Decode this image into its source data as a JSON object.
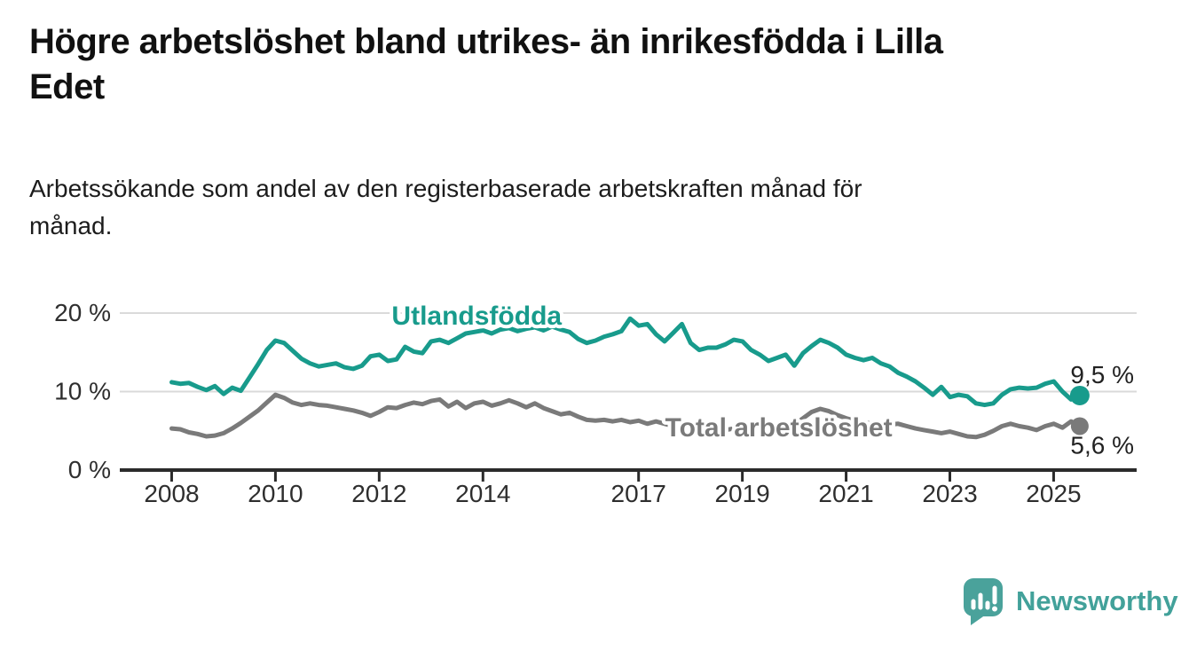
{
  "header": {
    "title": "Högre arbetslöshet bland utrikes- än inrikesfödda i Lilla\nEdet",
    "subtitle": "Arbetssökande som andel av den registerbaserade arbetskraften månad för\nmånad."
  },
  "chart_data": {
    "type": "line",
    "x_start": 2008.0,
    "x_step": 0.1667,
    "xlim": [
      2007.0,
      2026.6
    ],
    "ylim": [
      0,
      21.7
    ],
    "grid_values": [
      10,
      20
    ],
    "y_ticks": [
      {
        "value": 0,
        "label": "0 %"
      },
      {
        "value": 10,
        "label": "10 %"
      },
      {
        "value": 20,
        "label": "20 %"
      }
    ],
    "x_ticks": [
      {
        "value": 2008,
        "label": "2008"
      },
      {
        "value": 2010,
        "label": "2010"
      },
      {
        "value": 2012,
        "label": "2012"
      },
      {
        "value": 2014,
        "label": "2014"
      },
      {
        "value": 2017,
        "label": "2017"
      },
      {
        "value": 2019,
        "label": "2019"
      },
      {
        "value": 2021,
        "label": "2021"
      },
      {
        "value": 2023,
        "label": "2023"
      },
      {
        "value": 2025,
        "label": "2025"
      }
    ],
    "series": [
      {
        "name": "Utlandsfödda",
        "color": "#189b8c",
        "end_label": "9,5 %",
        "label_pos": {
          "x": 2013.88,
          "y": 19.67
        },
        "values": [
          11.2,
          11.0,
          11.1,
          10.6,
          10.2,
          10.7,
          9.7,
          10.5,
          10.1,
          11.8,
          13.5,
          15.3,
          16.5,
          16.2,
          15.2,
          14.2,
          13.6,
          13.2,
          13.4,
          13.6,
          13.1,
          12.9,
          13.3,
          14.5,
          14.7,
          13.9,
          14.1,
          15.7,
          15.1,
          14.9,
          16.4,
          16.6,
          16.2,
          16.8,
          17.4,
          17.6,
          17.8,
          17.4,
          17.9,
          18.1,
          17.7,
          18.0,
          18.2,
          17.8,
          18.3,
          17.9,
          17.6,
          16.7,
          16.2,
          16.5,
          17.0,
          17.3,
          17.7,
          19.3,
          18.4,
          18.6,
          17.3,
          16.4,
          17.5,
          18.6,
          16.2,
          15.3,
          15.6,
          15.6,
          16.0,
          16.6,
          16.4,
          15.3,
          14.7,
          13.9,
          14.3,
          14.7,
          13.3,
          14.9,
          15.8,
          16.6,
          16.2,
          15.6,
          14.7,
          14.3,
          14.0,
          14.3,
          13.6,
          13.2,
          12.4,
          11.9,
          11.3,
          10.5,
          9.6,
          10.6,
          9.3,
          9.6,
          9.4,
          8.5,
          8.3,
          8.5,
          9.6,
          10.3,
          10.5,
          10.4,
          10.5,
          11.0,
          11.3,
          10.0,
          9.0,
          9.5
        ]
      },
      {
        "name": "Total arbetslöshet",
        "color": "#7a7a7a",
        "end_label": "5,6 %",
        "label_pos": {
          "x": 2019.7,
          "y": 5.42
        },
        "values": [
          5.3,
          5.2,
          4.8,
          4.6,
          4.3,
          4.4,
          4.7,
          5.3,
          6.0,
          6.8,
          7.6,
          8.6,
          9.6,
          9.2,
          8.6,
          8.3,
          8.5,
          8.3,
          8.2,
          8.0,
          7.8,
          7.6,
          7.3,
          6.9,
          7.4,
          8.0,
          7.9,
          8.3,
          8.6,
          8.4,
          8.8,
          9.0,
          8.1,
          8.7,
          7.9,
          8.5,
          8.7,
          8.2,
          8.5,
          8.9,
          8.5,
          8.0,
          8.5,
          7.9,
          7.5,
          7.1,
          7.3,
          6.8,
          6.4,
          6.3,
          6.4,
          6.2,
          6.4,
          6.1,
          6.3,
          5.9,
          6.2,
          5.9,
          5.6,
          6.1,
          5.5,
          5.6,
          5.3,
          5.5,
          5.1,
          5.3,
          5.0,
          5.3,
          5.1,
          5.2,
          5.4,
          5.3,
          5.8,
          6.6,
          7.4,
          7.8,
          7.5,
          7.0,
          6.6,
          6.3,
          6.1,
          5.9,
          5.8,
          5.8,
          5.9,
          5.6,
          5.3,
          5.1,
          4.9,
          4.7,
          4.9,
          4.6,
          4.3,
          4.2,
          4.5,
          5.0,
          5.6,
          5.9,
          5.6,
          5.4,
          5.1,
          5.6,
          5.9,
          5.4,
          6.2,
          5.6
        ]
      }
    ],
    "colors": {
      "grid": "#dadada",
      "axis": "#2b2b2b",
      "tick_text": "#2e2e2e",
      "end_label_text": "#222222"
    }
  },
  "branding": {
    "logo_text": "Newsworthy",
    "logo_color": "#42a19a"
  }
}
